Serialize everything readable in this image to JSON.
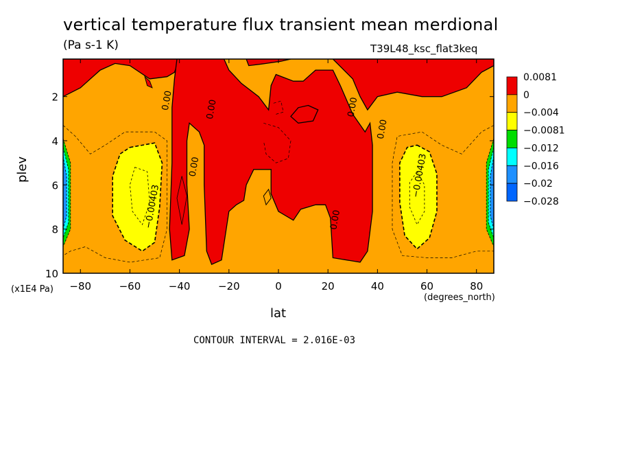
{
  "chart_data": {
    "type": "contour",
    "title": "vertical temperature flux transient mean merdional",
    "units": "(Pa s-1 K)",
    "run_label": "T39L48_ksc_flat3keq",
    "xlabel": "lat",
    "x_units": "(degrees_north)",
    "ylabel": "plev",
    "y_units": "(x1E4 Pa)",
    "xlim": [
      -87,
      87
    ],
    "ylim": [
      10,
      0.3
    ],
    "x_ticks": [
      -80,
      -60,
      -40,
      -20,
      0,
      20,
      40,
      60,
      80
    ],
    "x_tick_labels": [
      "−80",
      "−60",
      "−40",
      "−20",
      "0",
      "20",
      "40",
      "60",
      "80"
    ],
    "y_ticks": [
      2,
      4,
      6,
      8,
      10
    ],
    "y_tick_labels": [
      "2",
      "4",
      "6",
      "8",
      "10"
    ],
    "contour_interval_text": "CONTOUR INTERVAL = 2.016E-03",
    "colorbar": {
      "levels": [
        "0.0081",
        "0",
        "−0.004",
        "−0.0081",
        "−0.012",
        "−0.016",
        "−0.02",
        "−0.028"
      ],
      "colors": [
        "#ee0000",
        "#ffa500",
        "#ffa500",
        "#ffff00",
        "#00dd00",
        "#00ffff",
        "#1e90ff",
        "#0066ff"
      ]
    },
    "contour_labels": [
      {
        "text": "0.00",
        "lat": -44,
        "p": 2.2
      },
      {
        "text": "0.00",
        "lat": -26,
        "p": 2.6
      },
      {
        "text": "0.00",
        "lat": -33,
        "p": 5.2
      },
      {
        "text": "0.00",
        "lat": 31,
        "p": 2.5
      },
      {
        "text": "0.00",
        "lat": 43,
        "p": 3.5
      },
      {
        "text": "0.00",
        "lat": 24,
        "p": 7.6
      },
      {
        "text": "−0.00403",
        "lat": -50,
        "p": 7.0
      },
      {
        "text": "−0.00403",
        "lat": 58,
        "p": 5.6
      }
    ],
    "regions": {
      "positive": [
        [
          [
            -87,
            0.3
          ],
          [
            -87,
            2.0
          ],
          [
            -80,
            1.6
          ],
          [
            -72,
            0.8
          ],
          [
            -66,
            0.5
          ],
          [
            -60,
            0.6
          ],
          [
            -52,
            1.2
          ],
          [
            -45,
            1.1
          ],
          [
            -42,
            0.9
          ],
          [
            -40,
            0.3
          ]
        ],
        [
          [
            -41,
            0.3
          ],
          [
            -42,
            1.2
          ],
          [
            -43,
            2.5
          ],
          [
            -43,
            5.0
          ],
          [
            -44,
            8.0
          ],
          [
            -43,
            9.4
          ],
          [
            -38,
            9.2
          ],
          [
            -36,
            8.0
          ],
          [
            -37,
            6.0
          ],
          [
            -37,
            4.0
          ],
          [
            -36,
            3.2
          ],
          [
            -32,
            3.6
          ],
          [
            -30,
            4.2
          ],
          [
            -30,
            6.0
          ],
          [
            -29,
            9.0
          ],
          [
            -27,
            9.6
          ],
          [
            -23,
            9.4
          ],
          [
            -20,
            7.2
          ],
          [
            -17,
            6.9
          ],
          [
            -14,
            6.7
          ],
          [
            -13,
            6.0
          ],
          [
            -10,
            5.3
          ],
          [
            -3,
            5.3
          ],
          [
            -3,
            6.4
          ],
          [
            0,
            7.2
          ],
          [
            6,
            7.6
          ],
          [
            9,
            7.1
          ],
          [
            15,
            6.9
          ],
          [
            19,
            6.9
          ],
          [
            21,
            7.5
          ],
          [
            22,
            9.3
          ],
          [
            33,
            9.5
          ],
          [
            36,
            9.0
          ],
          [
            38,
            7.2
          ],
          [
            38,
            4.2
          ],
          [
            37,
            3.2
          ],
          [
            35,
            3.6
          ],
          [
            30,
            2.8
          ],
          [
            25,
            1.5
          ],
          [
            22,
            0.8
          ],
          [
            15,
            0.8
          ],
          [
            10,
            1.3
          ],
          [
            6,
            1.3
          ],
          [
            -1,
            1.0
          ],
          [
            -3,
            1.5
          ],
          [
            -4,
            2.6
          ],
          [
            -8,
            2.0
          ],
          [
            -15,
            1.4
          ],
          [
            -20,
            0.8
          ],
          [
            -22,
            0.3
          ]
        ],
        [
          [
            -13,
            0.3
          ],
          [
            -12,
            0.6
          ],
          [
            -5,
            0.5
          ],
          [
            1,
            0.4
          ],
          [
            5,
            0.3
          ]
        ],
        [
          [
            22,
            0.3
          ],
          [
            30,
            1.2
          ],
          [
            33,
            2.0
          ],
          [
            36,
            2.6
          ],
          [
            40,
            2.0
          ],
          [
            48,
            1.8
          ],
          [
            58,
            2.0
          ],
          [
            66,
            2.0
          ],
          [
            76,
            1.6
          ],
          [
            82,
            0.9
          ],
          [
            87,
            0.6
          ],
          [
            87,
            0.3
          ]
        ],
        [
          [
            12,
            2.4
          ],
          [
            16,
            2.6
          ],
          [
            14,
            3.1
          ],
          [
            8,
            3.2
          ],
          [
            5,
            2.9
          ],
          [
            8,
            2.5
          ]
        ]
      ],
      "minus4_s": [
        [
          -60,
          4.3
        ],
        [
          -50,
          4.1
        ],
        [
          -47,
          5.0
        ],
        [
          -48,
          7.0
        ],
        [
          -50,
          8.6
        ],
        [
          -55,
          9.0
        ],
        [
          -62,
          8.5
        ],
        [
          -67,
          7.4
        ],
        [
          -67,
          5.6
        ],
        [
          -64,
          4.6
        ]
      ],
      "minus4_n": [
        [
          56,
          4.2
        ],
        [
          61,
          4.5
        ],
        [
          64,
          5.5
        ],
        [
          64,
          7.2
        ],
        [
          61,
          8.4
        ],
        [
          56,
          8.9
        ],
        [
          51,
          8.3
        ],
        [
          49,
          6.8
        ],
        [
          49,
          5.0
        ],
        [
          52,
          4.3
        ]
      ]
    }
  }
}
